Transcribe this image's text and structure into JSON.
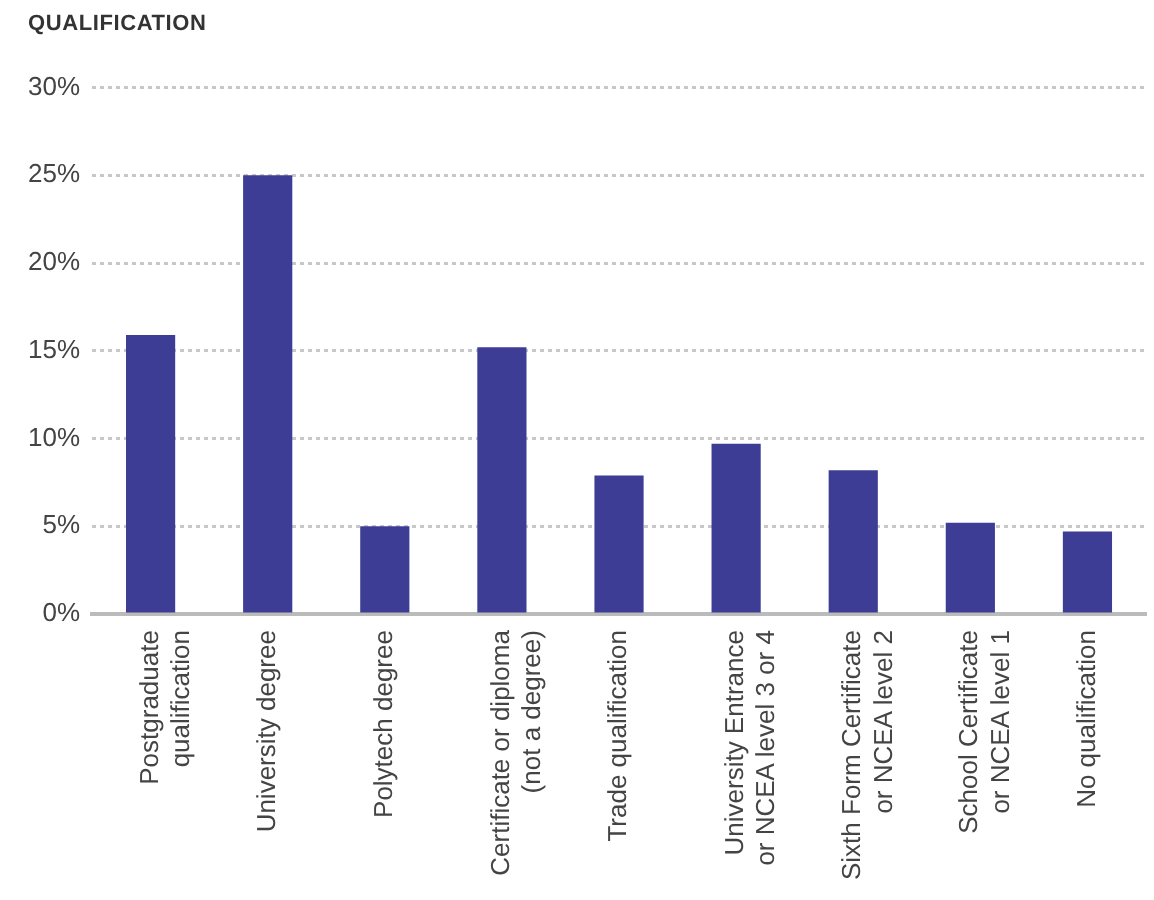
{
  "chart_data": {
    "type": "bar",
    "title": "QUALIFICATION",
    "categories": [
      "Postgraduate\nqualification",
      "University degree",
      "Polytech degree",
      "Certificate or diploma\n(not a degree)",
      "Trade qualification",
      "University Entrance\nor NCEA level 3 or 4",
      "Sixth Form Certificate\nor NCEA level 2",
      "School Certificate\nor NCEA level 1",
      "No qualification"
    ],
    "values": [
      15.9,
      25.0,
      5.0,
      15.2,
      7.9,
      9.7,
      8.2,
      5.2,
      4.7
    ],
    "color": "#3d3d96",
    "ylim": [
      0,
      30
    ],
    "yticks": [
      {
        "value": 0,
        "label": "0%"
      },
      {
        "value": 5,
        "label": "5%"
      },
      {
        "value": 10,
        "label": "10%"
      },
      {
        "value": 15,
        "label": "15%"
      },
      {
        "value": 20,
        "label": "20%"
      },
      {
        "value": 25,
        "label": "25%"
      },
      {
        "value": 30,
        "label": "30%"
      }
    ],
    "grid": "y",
    "legend": false
  }
}
